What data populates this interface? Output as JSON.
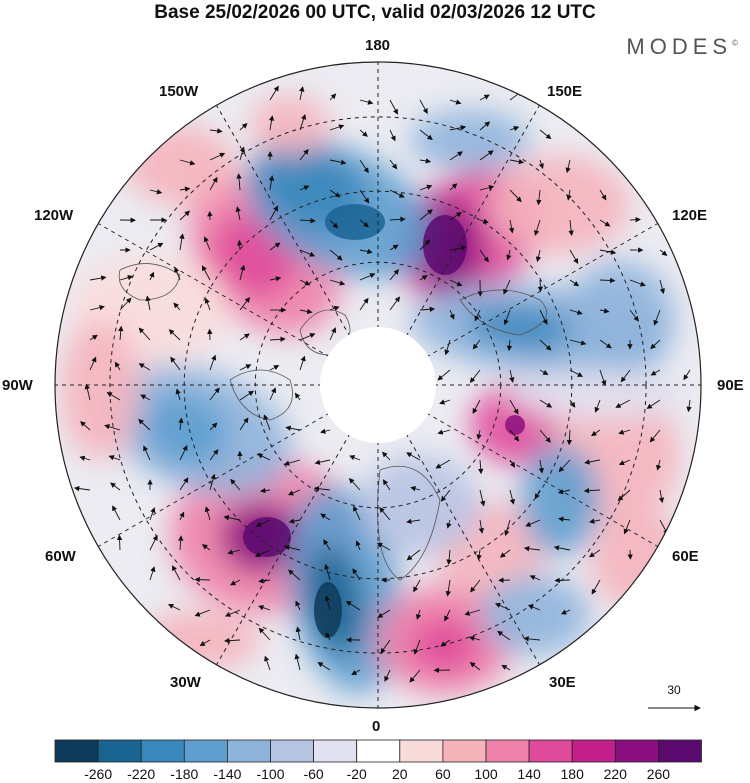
{
  "header": {
    "title": "Base 25/02/2026 00 UTC, valid 02/03/2026 12 UTC",
    "brand": "MODES",
    "brand_mark": "©"
  },
  "map": {
    "projection": "polar-stereographic-north",
    "longitude_labels": {
      "lon_180": "180",
      "lon_150E": "150E",
      "lon_120E": "120E",
      "lon_90E": "90E",
      "lon_60E": "60E",
      "lon_30E": "30E",
      "lon_0": "0",
      "lon_30W": "30W",
      "lon_60W": "60W",
      "lon_90W": "90W",
      "lon_120W": "120W",
      "lon_150W": "150W"
    },
    "vector_reference": "30"
  },
  "colorbar": {
    "ticks": [
      "-260",
      "-220",
      "-180",
      "-140",
      "-100",
      "-60",
      "-20",
      "20",
      "60",
      "100",
      "140",
      "180",
      "220",
      "260"
    ],
    "colors": [
      "#0e3b5a",
      "#1a6494",
      "#3a87bd",
      "#5e9fcf",
      "#8fb4dc",
      "#b7c3e3",
      "#e1e1f0",
      "#ffffff",
      "#fadbdc",
      "#f5b4bc",
      "#ef82a8",
      "#e04a9b",
      "#c21f8a",
      "#8c0f7f",
      "#5a0a6e"
    ]
  }
}
